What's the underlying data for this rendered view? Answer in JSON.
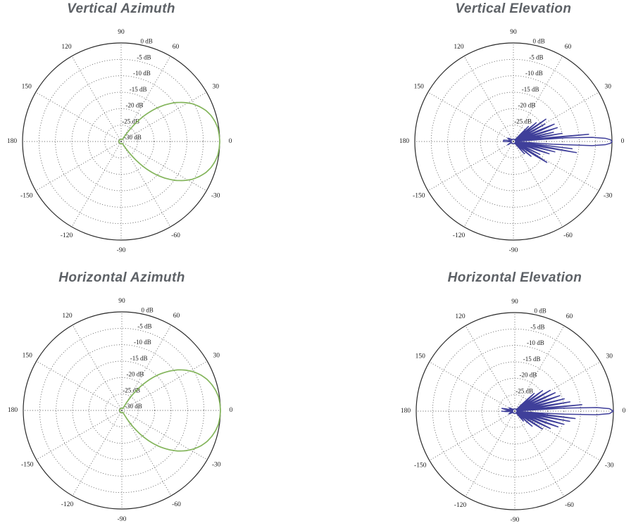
{
  "page": {
    "background": "#ffffff",
    "title_color": "#5d6166",
    "grid_color": "#4a4a4a",
    "outer_ring_color": "#2a2a2a",
    "tick_label_color": "#1c1c1c",
    "azimuth_line_color": "#84b55c",
    "elevation_line_color": "#3f3f9a"
  },
  "chart_data": [
    {
      "type": "line",
      "coordinate_system": "polar",
      "title": "Vertical Azimuth",
      "series_name": "vertical-azimuth-gain-pattern",
      "line_color": "#84b55c",
      "grid": "dotted",
      "legend": "none",
      "angle_ticks_deg": [
        90,
        60,
        30,
        0,
        -30,
        -60,
        -90,
        -120,
        -150,
        180,
        150,
        120
      ],
      "radial_ticks_db": [
        0,
        -5,
        -10,
        -15,
        -20,
        -25,
        -30
      ],
      "radial_unit": "dB",
      "radial_label_angle_deg": 77,
      "r_range_db": [
        -30,
        0
      ],
      "points_deg_db": [
        [
          -180,
          -30
        ],
        [
          -150,
          -30
        ],
        [
          -120,
          -30
        ],
        [
          -90,
          -30
        ],
        [
          -70,
          -30
        ],
        [
          -58,
          -30
        ],
        [
          -56,
          -27.7
        ],
        [
          -52,
          -23.3
        ],
        [
          -48,
          -19.3
        ],
        [
          -44,
          -15.8
        ],
        [
          -40,
          -12.7
        ],
        [
          -36,
          -9.9
        ],
        [
          -32,
          -7.6
        ],
        [
          -28,
          -5.5
        ],
        [
          -24,
          -3.9
        ],
        [
          -20,
          -2.5
        ],
        [
          -16,
          -1.5
        ],
        [
          -12,
          -0.8
        ],
        [
          -8,
          -0.3
        ],
        [
          -4,
          -0.1
        ],
        [
          0,
          0
        ],
        [
          4,
          -0.1
        ],
        [
          8,
          -0.3
        ],
        [
          12,
          -0.8
        ],
        [
          16,
          -1.5
        ],
        [
          20,
          -2.5
        ],
        [
          24,
          -3.9
        ],
        [
          28,
          -5.5
        ],
        [
          32,
          -7.6
        ],
        [
          36,
          -9.9
        ],
        [
          40,
          -12.7
        ],
        [
          44,
          -15.8
        ],
        [
          48,
          -19.3
        ],
        [
          52,
          -23.3
        ],
        [
          56,
          -27.7
        ],
        [
          58,
          -30
        ],
        [
          70,
          -30
        ],
        [
          90,
          -30
        ],
        [
          120,
          -30
        ],
        [
          150,
          -30
        ],
        [
          180,
          -30
        ]
      ]
    },
    {
      "type": "line",
      "coordinate_system": "polar",
      "title": "Vertical Elevation",
      "series_name": "vertical-elevation-gain-pattern",
      "line_color": "#3f3f9a",
      "grid": "dotted",
      "legend": "none",
      "angle_ticks_deg": [
        90,
        60,
        30,
        0,
        -30,
        -60,
        -90,
        -120,
        -150,
        180,
        150,
        120
      ],
      "radial_ticks_db": [
        0,
        -5,
        -10,
        -15,
        -20,
        -25,
        -30
      ],
      "radial_unit": "dB",
      "radial_label_angle_deg": 77,
      "r_range_db": [
        -30,
        0
      ],
      "points_deg_db": [
        [
          -180,
          -27
        ],
        [
          -176,
          -30
        ],
        [
          -160,
          -30
        ],
        [
          -150,
          -28
        ],
        [
          -146,
          -30
        ],
        [
          -120,
          -30
        ],
        [
          -90,
          -30
        ],
        [
          -60,
          -30
        ],
        [
          -50,
          -30
        ],
        [
          -48,
          -25
        ],
        [
          -46,
          -30
        ],
        [
          -43,
          -30
        ],
        [
          -40,
          -23
        ],
        [
          -38,
          -30
        ],
        [
          -35,
          -30
        ],
        [
          -32,
          -18
        ],
        [
          -29,
          -30
        ],
        [
          -28,
          -30
        ],
        [
          -26,
          -21
        ],
        [
          -24,
          -30
        ],
        [
          -22,
          -30
        ],
        [
          -19,
          -18.5
        ],
        [
          -17,
          -30
        ],
        [
          -16,
          -30
        ],
        [
          -14,
          -17
        ],
        [
          -12,
          -30
        ],
        [
          -11.5,
          -30
        ],
        [
          -10,
          -10.5
        ],
        [
          -8.5,
          -30
        ],
        [
          -8,
          -30
        ],
        [
          -7,
          -12
        ],
        [
          -6,
          -30
        ],
        [
          -5,
          -30
        ],
        [
          -4,
          -18
        ],
        [
          -3,
          -6
        ],
        [
          -2,
          -2
        ],
        [
          -1,
          -0.4
        ],
        [
          0,
          0
        ],
        [
          1,
          -0.4
        ],
        [
          2,
          -2
        ],
        [
          3,
          -6
        ],
        [
          4,
          -14
        ],
        [
          4.6,
          -30
        ],
        [
          4.8,
          -30
        ],
        [
          5.5,
          -7
        ],
        [
          7,
          -30
        ],
        [
          7.5,
          -30
        ],
        [
          9.5,
          -15
        ],
        [
          11,
          -30
        ],
        [
          11.5,
          -30
        ],
        [
          13,
          -17.5
        ],
        [
          14.5,
          -30
        ],
        [
          15,
          -30
        ],
        [
          17.5,
          -16
        ],
        [
          19.5,
          -30
        ],
        [
          20,
          -30
        ],
        [
          23,
          -16.5
        ],
        [
          25.5,
          -30
        ],
        [
          26,
          -30
        ],
        [
          29,
          -19
        ],
        [
          31,
          -30
        ],
        [
          32,
          -30
        ],
        [
          34.5,
          -18
        ],
        [
          36.5,
          -30
        ],
        [
          37,
          -30
        ],
        [
          39.5,
          -21
        ],
        [
          41.5,
          -30
        ],
        [
          42,
          -30
        ],
        [
          45,
          -23.5
        ],
        [
          47,
          -30
        ],
        [
          50,
          -30
        ],
        [
          60,
          -30
        ],
        [
          90,
          -30
        ],
        [
          120,
          -30
        ],
        [
          150,
          -28
        ],
        [
          165,
          -30
        ],
        [
          172,
          -27
        ],
        [
          180,
          -27
        ]
      ]
    },
    {
      "type": "line",
      "coordinate_system": "polar",
      "title": "Horizontal Azimuth",
      "series_name": "horizontal-azimuth-gain-pattern",
      "line_color": "#84b55c",
      "grid": "dotted",
      "legend": "none",
      "angle_ticks_deg": [
        90,
        60,
        30,
        0,
        -30,
        -60,
        -90,
        -120,
        -150,
        180,
        150,
        120
      ],
      "radial_ticks_db": [
        0,
        -5,
        -10,
        -15,
        -20,
        -25,
        -30
      ],
      "radial_unit": "dB",
      "radial_label_angle_deg": 77,
      "r_range_db": [
        -30,
        0
      ],
      "points_deg_db": [
        [
          -180,
          -30
        ],
        [
          -150,
          -30
        ],
        [
          -120,
          -30
        ],
        [
          -90,
          -30
        ],
        [
          -70,
          -30
        ],
        [
          -62,
          -30
        ],
        [
          -60,
          -28.5
        ],
        [
          -56,
          -24.4
        ],
        [
          -52,
          -20.7
        ],
        [
          -48,
          -17.3
        ],
        [
          -44,
          -14.2
        ],
        [
          -40,
          -11.5
        ],
        [
          -36,
          -9.0
        ],
        [
          -32,
          -6.9
        ],
        [
          -28,
          -5.1
        ],
        [
          -24,
          -3.6
        ],
        [
          -20,
          -2.4
        ],
        [
          -16,
          -1.5
        ],
        [
          -12,
          -0.8
        ],
        [
          -8,
          -0.3
        ],
        [
          -4,
          -0.1
        ],
        [
          0,
          0
        ],
        [
          4,
          -0.1
        ],
        [
          8,
          -0.3
        ],
        [
          12,
          -0.8
        ],
        [
          16,
          -1.5
        ],
        [
          20,
          -2.4
        ],
        [
          24,
          -3.6
        ],
        [
          28,
          -5.1
        ],
        [
          32,
          -6.9
        ],
        [
          36,
          -9.0
        ],
        [
          40,
          -11.5
        ],
        [
          44,
          -14.2
        ],
        [
          48,
          -17.3
        ],
        [
          52,
          -20.7
        ],
        [
          56,
          -24.4
        ],
        [
          60,
          -28.5
        ],
        [
          62,
          -30
        ],
        [
          70,
          -30
        ],
        [
          90,
          -30
        ],
        [
          120,
          -30
        ],
        [
          150,
          -30
        ],
        [
          180,
          -30
        ]
      ]
    },
    {
      "type": "line",
      "coordinate_system": "polar",
      "title": "Horizontal Elevation",
      "series_name": "horizontal-elevation-gain-pattern",
      "line_color": "#3f3f9a",
      "grid": "dotted",
      "legend": "none",
      "angle_ticks_deg": [
        90,
        60,
        30,
        0,
        -30,
        -60,
        -90,
        -120,
        -150,
        180,
        150,
        120
      ],
      "radial_ticks_db": [
        0,
        -5,
        -10,
        -15,
        -20,
        -25,
        -30
      ],
      "radial_unit": "dB",
      "radial_label_angle_deg": 77,
      "r_range_db": [
        -30,
        0
      ],
      "points_deg_db": [
        [
          -180,
          -26
        ],
        [
          -172,
          -30
        ],
        [
          -155,
          -28
        ],
        [
          -145,
          -30
        ],
        [
          -120,
          -30
        ],
        [
          -90,
          -30
        ],
        [
          -60,
          -30
        ],
        [
          -52,
          -30
        ],
        [
          -49,
          -26
        ],
        [
          -46,
          -30
        ],
        [
          -44,
          -30
        ],
        [
          -41,
          -23
        ],
        [
          -39,
          -30
        ],
        [
          -36,
          -30
        ],
        [
          -33,
          -20
        ],
        [
          -30,
          -30
        ],
        [
          -29,
          -30
        ],
        [
          -26,
          -18
        ],
        [
          -23.5,
          -30
        ],
        [
          -23,
          -30
        ],
        [
          -20,
          -16
        ],
        [
          -18,
          -30
        ],
        [
          -17,
          -30
        ],
        [
          -15,
          -14.5
        ],
        [
          -13,
          -30
        ],
        [
          -12.5,
          -30
        ],
        [
          -10.5,
          -13
        ],
        [
          -9,
          -30
        ],
        [
          -8.5,
          -30
        ],
        [
          -7,
          -11.5
        ],
        [
          -5.5,
          -30
        ],
        [
          -5,
          -30
        ],
        [
          -3.5,
          -15
        ],
        [
          -2.5,
          -5
        ],
        [
          -1.5,
          -1.2
        ],
        [
          0,
          0
        ],
        [
          1.5,
          -1.2
        ],
        [
          2.5,
          -5
        ],
        [
          3.5,
          -15
        ],
        [
          4.2,
          -30
        ],
        [
          4.4,
          -30
        ],
        [
          5.5,
          -9.5
        ],
        [
          7,
          -30
        ],
        [
          7.5,
          -30
        ],
        [
          9.5,
          -13
        ],
        [
          11.5,
          -30
        ],
        [
          12,
          -30
        ],
        [
          14,
          -14.5
        ],
        [
          16,
          -30
        ],
        [
          16.5,
          -30
        ],
        [
          19,
          -15.5
        ],
        [
          21.5,
          -30
        ],
        [
          22,
          -30
        ],
        [
          24.5,
          -16.5
        ],
        [
          27,
          -30
        ],
        [
          27.5,
          -30
        ],
        [
          30.5,
          -17.5
        ],
        [
          33,
          -30
        ],
        [
          33.5,
          -30
        ],
        [
          36.5,
          -19.5
        ],
        [
          39,
          -30
        ],
        [
          39.5,
          -30
        ],
        [
          42.5,
          -22
        ],
        [
          45,
          -30
        ],
        [
          48,
          -30
        ],
        [
          60,
          -30
        ],
        [
          90,
          -30
        ],
        [
          130,
          -30
        ],
        [
          150,
          -28
        ],
        [
          160,
          -30
        ],
        [
          168,
          -26
        ],
        [
          174,
          -30
        ],
        [
          180,
          -27
        ]
      ]
    }
  ]
}
